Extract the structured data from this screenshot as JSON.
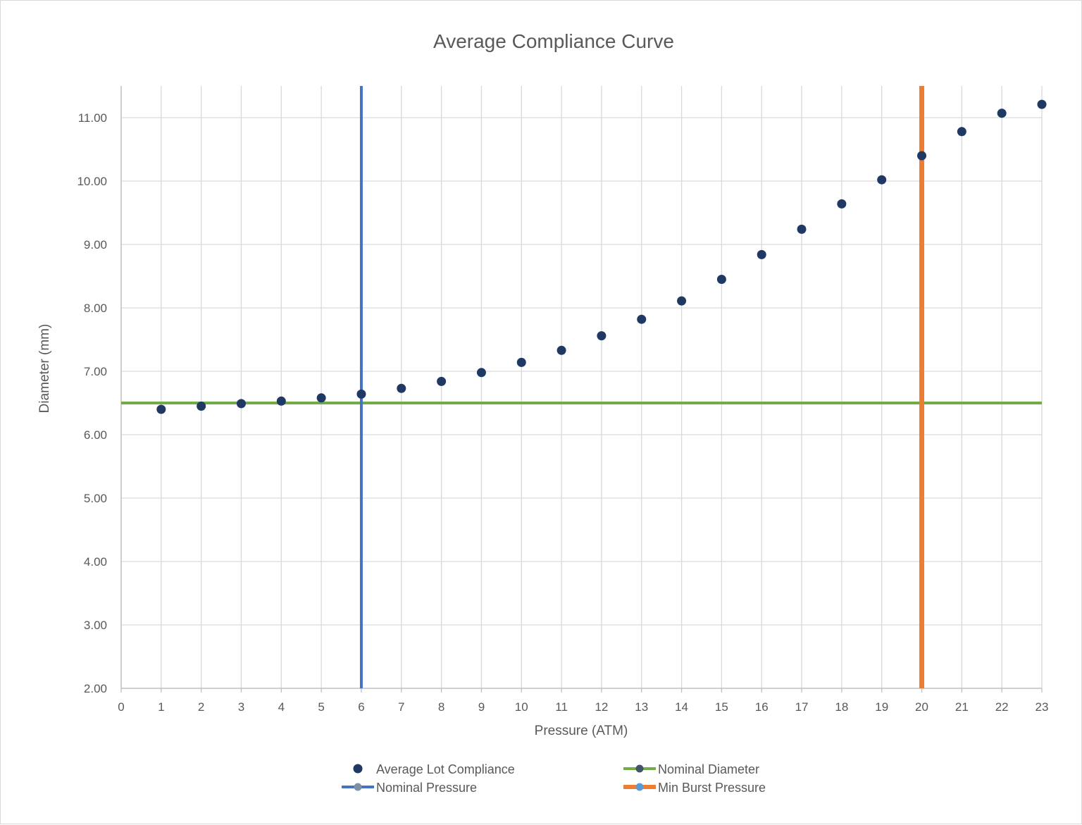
{
  "chart_data": {
    "type": "scatter",
    "title": "Average Compliance Curve",
    "xlabel": "Pressure (ATM)",
    "ylabel": "Diameter (mm)",
    "xlim": [
      0,
      23
    ],
    "ylim": [
      2,
      11.5
    ],
    "x_ticks": [
      "0",
      "1",
      "2",
      "3",
      "4",
      "5",
      "6",
      "7",
      "8",
      "9",
      "10",
      "11",
      "12",
      "13",
      "14",
      "15",
      "16",
      "17",
      "18",
      "19",
      "20",
      "21",
      "22",
      "23"
    ],
    "y_ticks": [
      "2.00",
      "3.00",
      "4.00",
      "5.00",
      "6.00",
      "7.00",
      "8.00",
      "9.00",
      "10.00",
      "11.00"
    ],
    "grid": true,
    "legend_position": "bottom",
    "series": [
      {
        "name": "Average Lot Compliance",
        "kind": "points",
        "color": "#203864",
        "x": [
          1,
          2,
          3,
          4,
          5,
          6,
          7,
          8,
          9,
          10,
          11,
          12,
          13,
          14,
          15,
          16,
          17,
          18,
          19,
          20,
          21,
          22,
          23
        ],
        "y": [
          6.4,
          6.45,
          6.49,
          6.53,
          6.58,
          6.64,
          6.73,
          6.84,
          6.98,
          7.14,
          7.33,
          7.56,
          7.82,
          8.11,
          8.45,
          8.84,
          9.24,
          9.64,
          10.02,
          10.4,
          10.78,
          11.07,
          11.21
        ]
      },
      {
        "name": "Nominal Diameter",
        "kind": "hline",
        "color": "#70ad47",
        "marker_color": "#44546a",
        "y": 6.5
      },
      {
        "name": "Nominal Pressure",
        "kind": "vline",
        "color": "#4472c4",
        "marker_color": "#7f8fa6",
        "x": 6
      },
      {
        "name": "Min Burst Pressure",
        "kind": "vline",
        "color": "#ed7d31",
        "marker_color": "#5b9bd5",
        "x": 20
      }
    ]
  }
}
